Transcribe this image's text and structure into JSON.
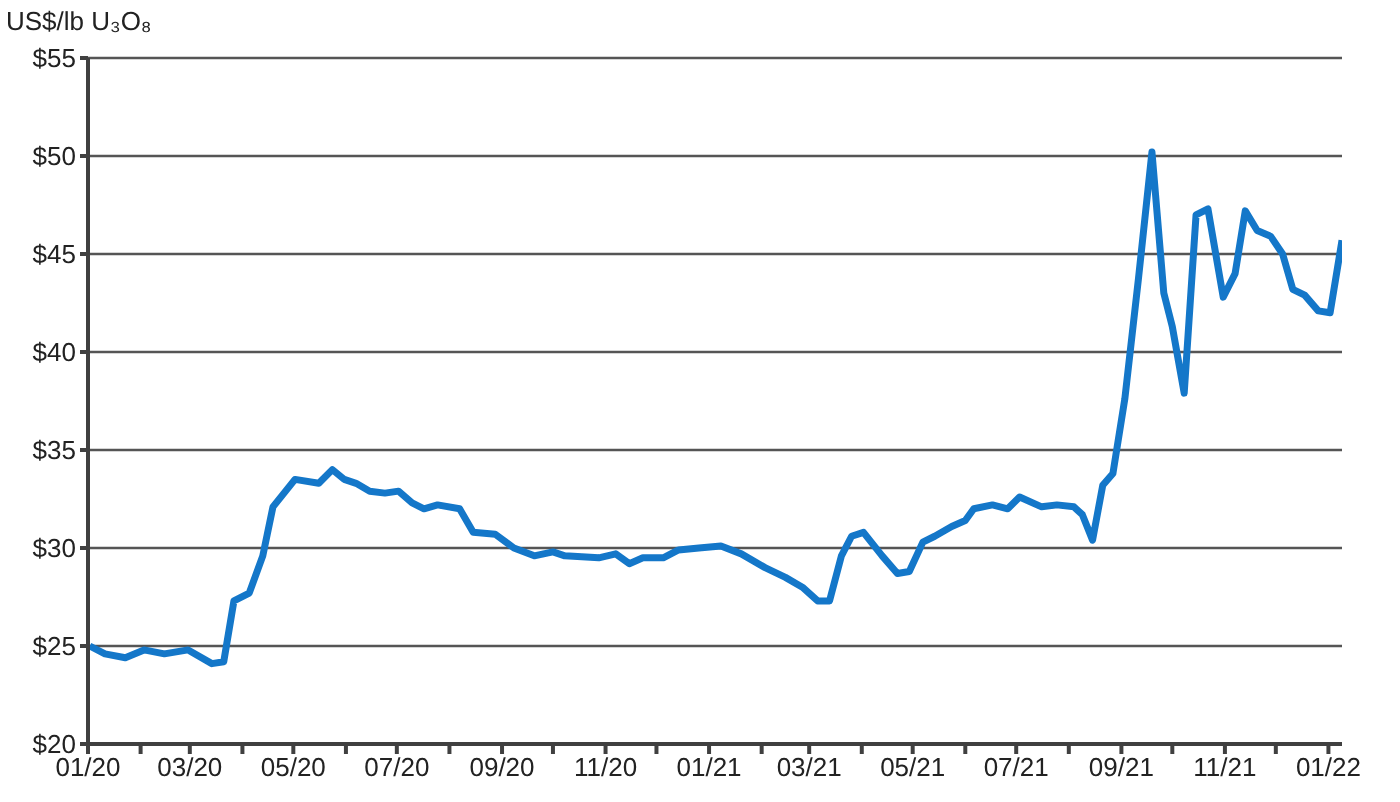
{
  "chart_data": {
    "type": "line",
    "ylabel": "US$/lb U₃O₈",
    "x": [
      "2020-01-02",
      "2020-01-11",
      "2020-01-23",
      "2020-02-03",
      "2020-02-15",
      "2020-02-29",
      "2020-03-14",
      "2020-03-21",
      "2020-03-27",
      "2020-04-05",
      "2020-04-13",
      "2020-04-19",
      "2020-05-02",
      "2020-05-16",
      "2020-05-24",
      "2020-05-31",
      "2020-06-07",
      "2020-06-15",
      "2020-06-24",
      "2020-07-02",
      "2020-07-10",
      "2020-07-17",
      "2020-07-25",
      "2020-08-07",
      "2020-08-15",
      "2020-08-28",
      "2020-09-08",
      "2020-09-20",
      "2020-10-01",
      "2020-10-08",
      "2020-10-28",
      "2020-11-07",
      "2020-11-15",
      "2020-11-23",
      "2020-12-05",
      "2020-12-14",
      "2020-12-26",
      "2021-01-08",
      "2021-01-20",
      "2021-02-03",
      "2021-02-15",
      "2021-02-25",
      "2021-03-06",
      "2021-03-13",
      "2021-03-20",
      "2021-03-26",
      "2021-04-02",
      "2021-04-13",
      "2021-04-22",
      "2021-04-29",
      "2021-05-07",
      "2021-05-14",
      "2021-05-24",
      "2021-06-01",
      "2021-06-06",
      "2021-06-17",
      "2021-06-26",
      "2021-07-03",
      "2021-07-16",
      "2021-07-25",
      "2021-08-04",
      "2021-08-09",
      "2021-08-15",
      "2021-08-21",
      "2021-08-27",
      "2021-09-03",
      "2021-09-11",
      "2021-09-19",
      "2021-09-26",
      "2021-10-01",
      "2021-10-08",
      "2021-10-15",
      "2021-10-22",
      "2021-10-31",
      "2021-11-07",
      "2021-11-13",
      "2021-11-20",
      "2021-11-28",
      "2021-12-05",
      "2021-12-11",
      "2021-12-18",
      "2021-12-26",
      "2022-01-02",
      "2022-01-09"
    ],
    "series": [
      {
        "color": "#1477c9",
        "values": [
          25.0,
          24.6,
          24.4,
          24.8,
          24.6,
          24.8,
          24.1,
          24.2,
          27.3,
          27.7,
          29.6,
          32.1,
          33.5,
          33.3,
          34.0,
          33.5,
          33.3,
          32.9,
          32.8,
          32.9,
          32.3,
          32.0,
          32.2,
          32.0,
          30.8,
          30.7,
          30.0,
          29.6,
          29.8,
          29.6,
          29.5,
          29.7,
          29.2,
          29.5,
          29.5,
          29.9,
          30.0,
          30.1,
          29.7,
          29.0,
          28.5,
          28.0,
          27.3,
          27.3,
          29.6,
          30.6,
          30.8,
          29.6,
          28.7,
          28.8,
          30.3,
          30.6,
          31.1,
          31.4,
          32.0,
          32.2,
          32.0,
          32.6,
          32.1,
          32.2,
          32.1,
          31.7,
          30.4,
          33.2,
          33.8,
          37.6,
          43.7,
          50.2,
          43.0,
          41.3,
          37.9,
          47.0,
          47.3,
          42.8,
          44.0,
          47.2,
          46.2,
          45.9,
          45.0,
          43.2,
          42.9,
          42.1,
          42.0,
          45.7
        ]
      }
    ],
    "xlim": [
      "2020-01-01",
      "2022-01-09"
    ],
    "xticks": [
      {
        "value": "2020-01",
        "label": "01/20"
      },
      {
        "value": "2020-02",
        "label": null
      },
      {
        "value": "2020-03",
        "label": "03/20"
      },
      {
        "value": "2020-04",
        "label": null
      },
      {
        "value": "2020-05",
        "label": "05/20"
      },
      {
        "value": "2020-06",
        "label": null
      },
      {
        "value": "2020-07",
        "label": "07/20"
      },
      {
        "value": "2020-08",
        "label": null
      },
      {
        "value": "2020-09",
        "label": "09/20"
      },
      {
        "value": "2020-10",
        "label": null
      },
      {
        "value": "2020-11",
        "label": "11/20"
      },
      {
        "value": "2020-12",
        "label": null
      },
      {
        "value": "2021-01",
        "label": "01/21"
      },
      {
        "value": "2021-02",
        "label": null
      },
      {
        "value": "2021-03",
        "label": "03/21"
      },
      {
        "value": "2021-04",
        "label": null
      },
      {
        "value": "2021-05",
        "label": "05/21"
      },
      {
        "value": "2021-06",
        "label": null
      },
      {
        "value": "2021-07",
        "label": "07/21"
      },
      {
        "value": "2021-08",
        "label": null
      },
      {
        "value": "2021-09",
        "label": "09/21"
      },
      {
        "value": "2021-10",
        "label": null
      },
      {
        "value": "2021-11",
        "label": "11/21"
      },
      {
        "value": "2021-12",
        "label": null
      },
      {
        "value": "2022-01",
        "label": "01/22"
      }
    ],
    "ylim": [
      20,
      55
    ],
    "yticks": [
      {
        "value": 20,
        "label": "$20"
      },
      {
        "value": 25,
        "label": "$25"
      },
      {
        "value": 30,
        "label": "$30"
      },
      {
        "value": 35,
        "label": "$35"
      },
      {
        "value": 40,
        "label": "$40"
      },
      {
        "value": 45,
        "label": "$45"
      },
      {
        "value": 50,
        "label": "$50"
      },
      {
        "value": 55,
        "label": "$55"
      }
    ],
    "grid": "y",
    "legend": false
  }
}
